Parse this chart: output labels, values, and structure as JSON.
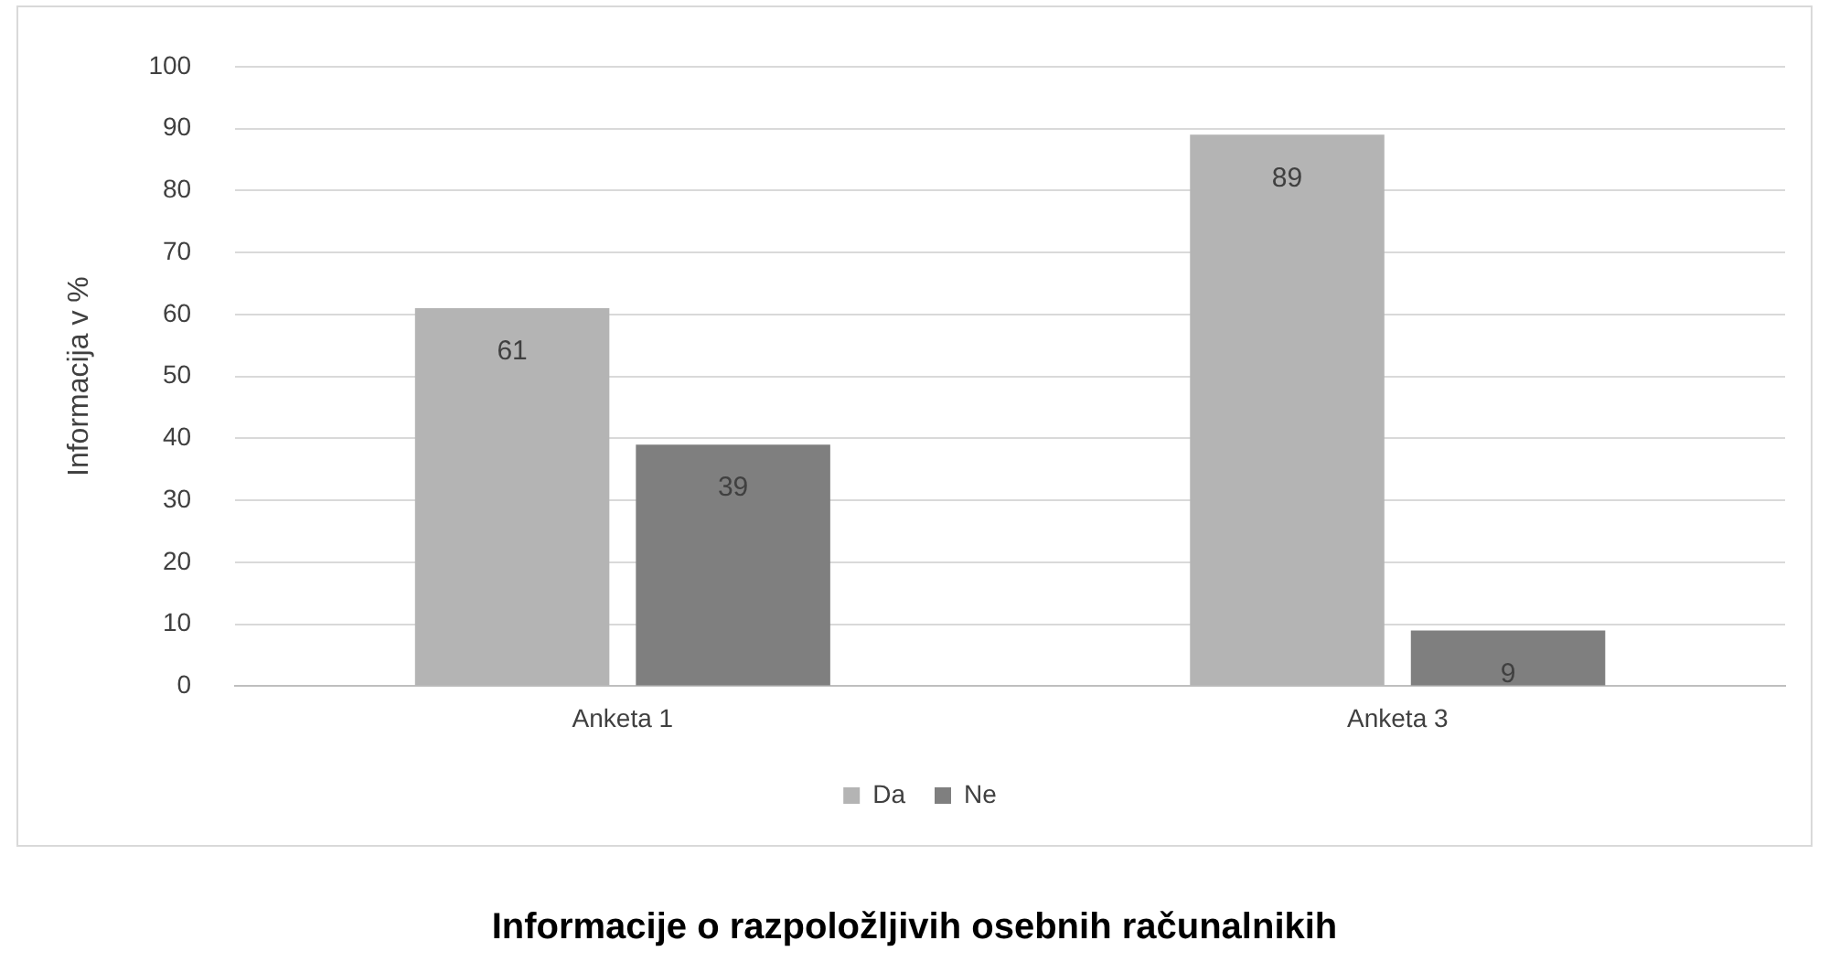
{
  "chart_data": {
    "type": "bar",
    "title": "Informacije o razpoložljivih osebnih računalnikih",
    "ylabel": "Informacija v %",
    "categories": [
      "Anketa 1",
      "Anketa 3"
    ],
    "series": [
      {
        "name": "Da",
        "color": "#b4b4b4",
        "values": [
          61,
          89
        ]
      },
      {
        "name": "Ne",
        "color": "#7f7f7f",
        "values": [
          39,
          9
        ]
      }
    ],
    "ylim": [
      0,
      100
    ],
    "yticks": [
      0,
      10,
      20,
      30,
      40,
      50,
      60,
      70,
      80,
      90,
      100
    ],
    "grid": "y",
    "legend": "bottom",
    "data_labels": true
  }
}
